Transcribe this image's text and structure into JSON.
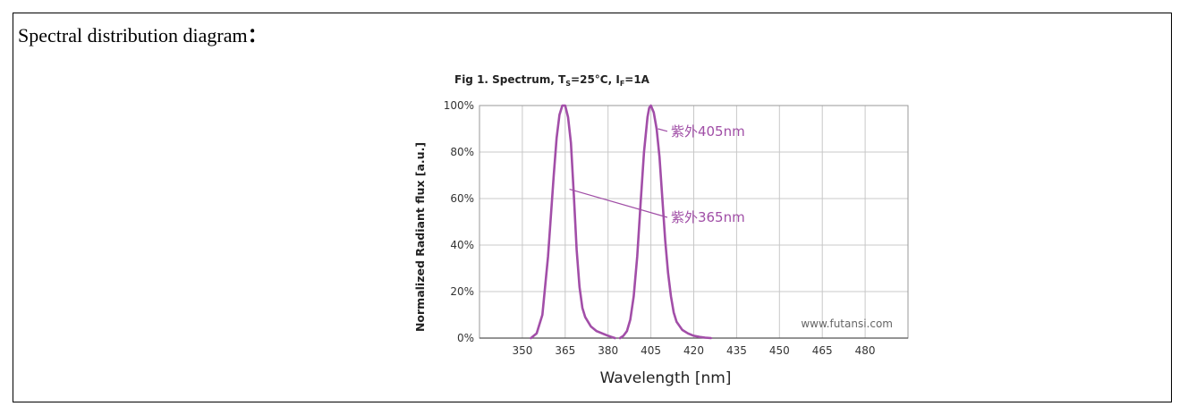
{
  "page": {
    "heading": "Spectral distribution diagram",
    "heading_colon": "："
  },
  "colors": {
    "curve": "#a24ea8",
    "grid": "#c8c8c8",
    "annotation": "#a04ea6"
  },
  "chart_data": {
    "type": "line",
    "title_main": "Fig 1. Spectrum, T",
    "title_sub1": "S",
    "title_mid": "=25°C, I",
    "title_sub2": "F",
    "title_end": "=1A",
    "xlabel": "Wavelength [nm]",
    "ylabel": "Normalized Radiant flux [a.u.]",
    "xlim": [
      335,
      495
    ],
    "ylim": [
      0,
      100
    ],
    "x_ticks": [
      350,
      365,
      380,
      405,
      420,
      435,
      450,
      465,
      480
    ],
    "x_tick_labels": [
      "350",
      "365",
      "380",
      "405",
      "420",
      "435",
      "450",
      "465",
      "480"
    ],
    "y_ticks": [
      0,
      20,
      40,
      60,
      80,
      100
    ],
    "y_tick_labels": [
      "0%",
      "20%",
      "40%",
      "60%",
      "80%",
      "100%"
    ],
    "grid": true,
    "watermark": "www.futansi.com",
    "series": [
      {
        "name": "紫外365nm",
        "x": [
          353,
          355,
          357,
          359,
          361,
          362,
          363,
          364,
          365,
          366,
          367,
          368,
          369,
          370,
          371,
          372,
          374,
          376,
          378,
          380,
          382,
          384
        ],
        "y": [
          0,
          2,
          10,
          35,
          70,
          86,
          96,
          100,
          100,
          95,
          84,
          62,
          38,
          22,
          13,
          9,
          5,
          3,
          2,
          1,
          0.5,
          0
        ]
      },
      {
        "name": "紫外405nm",
        "x": [
          387,
          389,
          391,
          393,
          395,
          397,
          399,
          401,
          403,
          404,
          405,
          406,
          407,
          408,
          409,
          410,
          411,
          412,
          413,
          414,
          416,
          418,
          420,
          422,
          424,
          426
        ],
        "y": [
          0,
          1,
          3,
          8,
          18,
          35,
          58,
          80,
          95,
          99,
          100,
          97,
          90,
          78,
          60,
          42,
          28,
          18,
          11,
          7,
          3.5,
          2,
          1,
          0.5,
          0.2,
          0
        ]
      }
    ],
    "annotations": [
      {
        "text": "紫外405nm",
        "series": "紫外405nm",
        "at_x": 407.5,
        "at_y": 90,
        "label_x": 412,
        "label_y": 87
      },
      {
        "text": "紫外365nm",
        "series": "紫外365nm",
        "at_x": 366.5,
        "at_y": 64,
        "label_x": 412,
        "label_y": 50
      }
    ]
  }
}
